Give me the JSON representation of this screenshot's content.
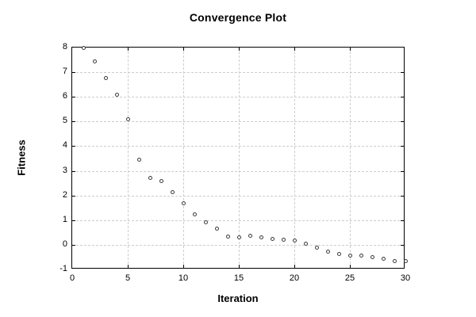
{
  "chart_data": {
    "type": "scatter",
    "title": "Convergence Plot",
    "xlabel": "Iteration",
    "ylabel": "Fitness",
    "xlim": [
      0,
      30
    ],
    "ylim": [
      -1,
      8
    ],
    "xticks": [
      0,
      5,
      10,
      15,
      20,
      25,
      30
    ],
    "yticks": [
      -1,
      0,
      1,
      2,
      3,
      4,
      5,
      6,
      7,
      8
    ],
    "grid": true,
    "legend": false,
    "marker": "open-circle",
    "series": [
      {
        "x": [
          1,
          2,
          3,
          4,
          5,
          6,
          7,
          8,
          9,
          10,
          11,
          12,
          13,
          14,
          15,
          16,
          17,
          18,
          19,
          20,
          21,
          22,
          23,
          24,
          25,
          26,
          27,
          28,
          29,
          30
        ],
        "y": [
          8.0,
          7.45,
          6.75,
          6.1,
          5.1,
          3.45,
          2.7,
          2.6,
          2.15,
          1.7,
          1.25,
          0.9,
          0.65,
          0.35,
          0.31,
          0.36,
          0.3,
          0.25,
          0.22,
          0.16,
          0.05,
          -0.1,
          -0.27,
          -0.36,
          -0.44,
          -0.43,
          -0.5,
          -0.56,
          -0.65,
          -0.65
        ]
      }
    ]
  },
  "colors": {
    "background": "#ffffff",
    "axis": "#000000",
    "grid": "#cdcdcd",
    "marker": "#3a3a3a",
    "text": "#000000"
  }
}
